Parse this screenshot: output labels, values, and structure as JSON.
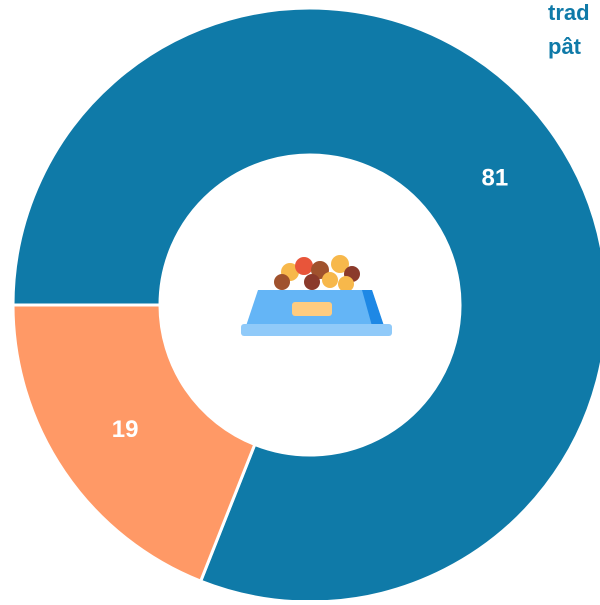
{
  "chart_data": {
    "type": "donut",
    "annotation_lines": [
      "trad",
      "pât"
    ],
    "categories": [
      "81",
      "19"
    ],
    "values": [
      81,
      19
    ],
    "colors": [
      "#0f7aa8",
      "#ff9966"
    ]
  }
}
